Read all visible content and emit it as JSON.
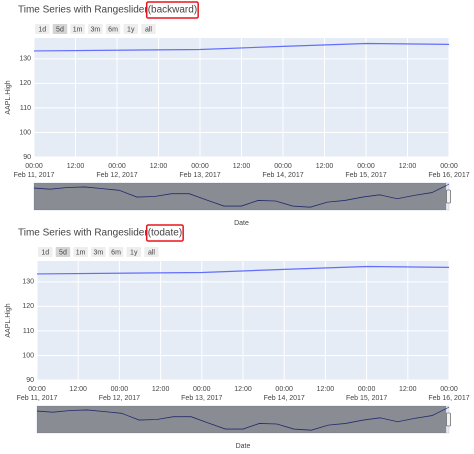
{
  "chart_data": [
    {
      "type": "line",
      "title": "Time Series with Rangeslider",
      "title_highlight": "(backward)",
      "buttons": [
        "1d",
        "5d",
        "1m",
        "3m",
        "6m",
        "1y",
        "all"
      ],
      "active_button": 1,
      "xlabel": "Date",
      "ylabel": "AAPL.High",
      "x": [
        "2017-02-10",
        "2017-02-13",
        "2017-02-14",
        "2017-02-15",
        "2017-02-16"
      ],
      "series": [
        {
          "color": "#636efa",
          "values": [
            132.94,
            133.82,
            135.09,
            136.27,
            135.9
          ]
        }
      ],
      "xlim": [
        "2017-02-11T00:00",
        "2017-02-16T00:00"
      ],
      "xticks": [
        {
          "value": "2017-02-11T00:00",
          "label": "00:00\nFeb 11, 2017"
        },
        {
          "value": "2017-02-11T12:00",
          "label": "12:00"
        },
        {
          "value": "2017-02-12T00:00",
          "label": "00:00\nFeb 12, 2017"
        },
        {
          "value": "2017-02-12T12:00",
          "label": "12:00"
        },
        {
          "value": "2017-02-13T00:00",
          "label": "00:00\nFeb 13, 2017"
        },
        {
          "value": "2017-02-13T12:00",
          "label": "12:00"
        },
        {
          "value": "2017-02-14T00:00",
          "label": "00:00\nFeb 14, 2017"
        },
        {
          "value": "2017-02-14T12:00",
          "label": "12:00"
        },
        {
          "value": "2017-02-15T00:00",
          "label": "00:00\nFeb 15, 2017"
        },
        {
          "value": "2017-02-15T12:00",
          "label": "12:00"
        },
        {
          "value": "2017-02-16T00:00",
          "label": "00:00\nFeb 16, 2017"
        }
      ],
      "ylim": [
        90,
        138.5
      ],
      "yticks": [
        90,
        100,
        110,
        120,
        130
      ],
      "grid": true,
      "rangeslider": {
        "x": [
          "2015-02-17",
          "2015-03-17",
          "2015-04-17",
          "2015-05-17",
          "2015-06-17",
          "2015-07-17",
          "2015-08-17",
          "2015-09-17",
          "2015-10-17",
          "2015-11-17",
          "2015-12-17",
          "2016-01-17",
          "2016-02-17",
          "2016-03-17",
          "2016-04-17",
          "2016-05-17",
          "2016-06-17",
          "2016-07-17",
          "2016-08-17",
          "2016-09-17",
          "2016-10-17",
          "2016-11-17",
          "2016-12-17",
          "2017-01-17",
          "2017-02-16"
        ],
        "values": [
          129,
          127,
          130,
          131,
          128,
          125,
          113,
          114,
          119,
          119,
          108,
          97,
          97,
          107,
          106,
          97,
          95,
          104,
          107,
          113,
          117,
          110,
          116,
          121,
          135.9
        ],
        "ylim": [
          90,
          138
        ]
      }
    },
    {
      "type": "line",
      "title": "Time Series with Rangeslider",
      "title_highlight": "(todate)",
      "buttons": [
        "1d",
        "5d",
        "1m",
        "3m",
        "6m",
        "1y",
        "all"
      ],
      "active_button": 1,
      "xlabel": "Date",
      "ylabel": "AAPL.High",
      "x": [
        "2017-02-10",
        "2017-02-13",
        "2017-02-14",
        "2017-02-15",
        "2017-02-16"
      ],
      "series": [
        {
          "color": "#636efa",
          "values": [
            132.94,
            133.82,
            135.09,
            136.27,
            135.9
          ]
        }
      ],
      "xlim": [
        "2017-02-11T00:00",
        "2017-02-16T00:00"
      ],
      "xticks": [
        {
          "value": "2017-02-11T00:00",
          "label": "00:00\nFeb 11, 2017"
        },
        {
          "value": "2017-02-11T12:00",
          "label": "12:00"
        },
        {
          "value": "2017-02-12T00:00",
          "label": "00:00\nFeb 12, 2017"
        },
        {
          "value": "2017-02-12T12:00",
          "label": "12:00"
        },
        {
          "value": "2017-02-13T00:00",
          "label": "00:00\nFeb 13, 2017"
        },
        {
          "value": "2017-02-13T12:00",
          "label": "12:00"
        },
        {
          "value": "2017-02-14T00:00",
          "label": "00:00\nFeb 14, 2017"
        },
        {
          "value": "2017-02-14T12:00",
          "label": "12:00"
        },
        {
          "value": "2017-02-15T00:00",
          "label": "00:00\nFeb 15, 2017"
        },
        {
          "value": "2017-02-15T12:00",
          "label": "12:00"
        },
        {
          "value": "2017-02-16T00:00",
          "label": "00:00\nFeb 16, 2017"
        }
      ],
      "ylim": [
        90,
        138.5
      ],
      "yticks": [
        90,
        100,
        110,
        120,
        130
      ],
      "grid": true,
      "rangeslider": {
        "x": [
          "2015-02-17",
          "2015-03-17",
          "2015-04-17",
          "2015-05-17",
          "2015-06-17",
          "2015-07-17",
          "2015-08-17",
          "2015-09-17",
          "2015-10-17",
          "2015-11-17",
          "2015-12-17",
          "2016-01-17",
          "2016-02-17",
          "2016-03-17",
          "2016-04-17",
          "2016-05-17",
          "2016-06-17",
          "2016-07-17",
          "2016-08-17",
          "2016-09-17",
          "2016-10-17",
          "2016-11-17",
          "2016-12-17",
          "2017-01-17",
          "2017-02-16"
        ],
        "values": [
          129,
          127,
          130,
          131,
          128,
          125,
          113,
          114,
          119,
          119,
          108,
          97,
          97,
          107,
          106,
          97,
          95,
          104,
          107,
          113,
          117,
          110,
          116,
          121,
          135.9
        ],
        "ylim": [
          90,
          138
        ]
      }
    }
  ]
}
